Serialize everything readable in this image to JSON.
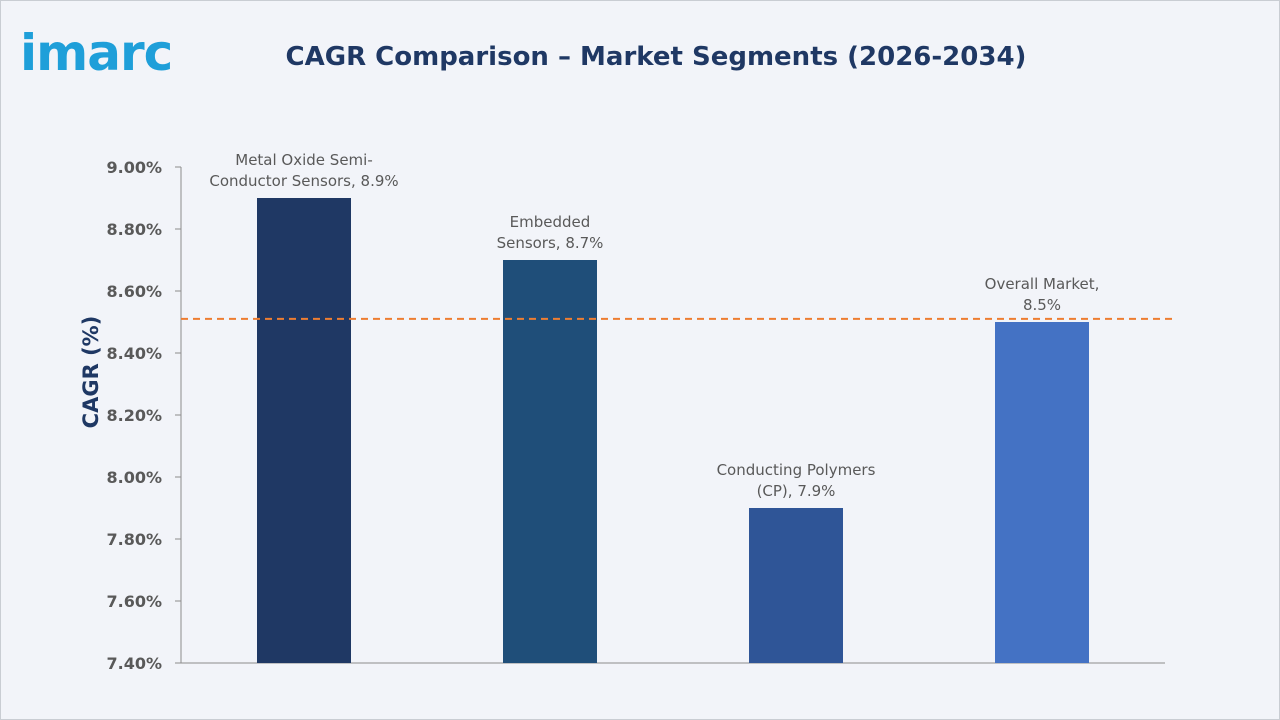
{
  "logo": {
    "text": "imarc"
  },
  "chart_data": {
    "type": "bar",
    "title": "CAGR Comparison – Market Segments (2026-2034)",
    "ylabel": "CAGR (%)",
    "xlabel": "",
    "ylim": [
      7.4,
      9.0
    ],
    "yticks": [
      7.4,
      7.6,
      7.8,
      8.0,
      8.2,
      8.4,
      8.6,
      8.8,
      9.0
    ],
    "ytick_labels": [
      "7.40%",
      "7.60%",
      "7.80%",
      "8.00%",
      "8.20%",
      "8.40%",
      "8.60%",
      "8.80%",
      "9.00%"
    ],
    "categories": [
      "Metal Oxide Semi-Conductor Sensors",
      "Embedded Sensors",
      "Conducting Polymers (CP)",
      "Overall Market"
    ],
    "values": [
      8.9,
      8.7,
      7.9,
      8.5
    ],
    "data_labels": [
      [
        "Metal Oxide Semi-",
        "Conductor Sensors, 8.9%"
      ],
      [
        "Embedded",
        "Sensors, 8.7%"
      ],
      [
        "Conducting Polymers",
        "(CP), 7.9%"
      ],
      [
        "Overall Market,",
        "8.5%"
      ]
    ],
    "bar_colors": [
      "#1f3864",
      "#1f4e79",
      "#2f5597",
      "#4472c4"
    ],
    "reference_line": {
      "value": 8.51,
      "color": "#ed7d31",
      "style": "dashed"
    },
    "grid": false
  }
}
